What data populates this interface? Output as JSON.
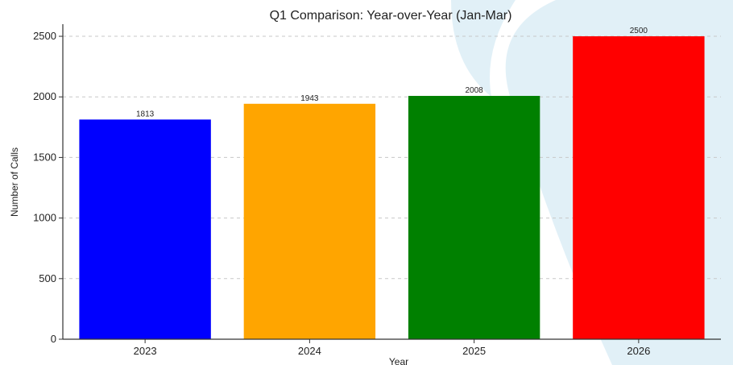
{
  "chart_data": {
    "type": "bar",
    "title": "Q1 Comparison: Year-over-Year (Jan-Mar)",
    "xlabel": "Year",
    "ylabel": "Number of Calls",
    "categories": [
      "2023",
      "2024",
      "2025",
      "2026"
    ],
    "values": [
      1813,
      1943,
      2008,
      2500
    ],
    "data_labels": [
      "1813",
      "1943",
      "2008",
      "2500"
    ],
    "colors": [
      "#0000ff",
      "#ffa500",
      "#008000",
      "#ff0000"
    ],
    "ylim": [
      0,
      2600
    ],
    "yticks": [
      0,
      500,
      1000,
      1500,
      2000,
      2500
    ],
    "ytick_labels": [
      "0",
      "500",
      "1000",
      "1500",
      "2000",
      "2500"
    ],
    "grid": true,
    "legend": "none"
  }
}
